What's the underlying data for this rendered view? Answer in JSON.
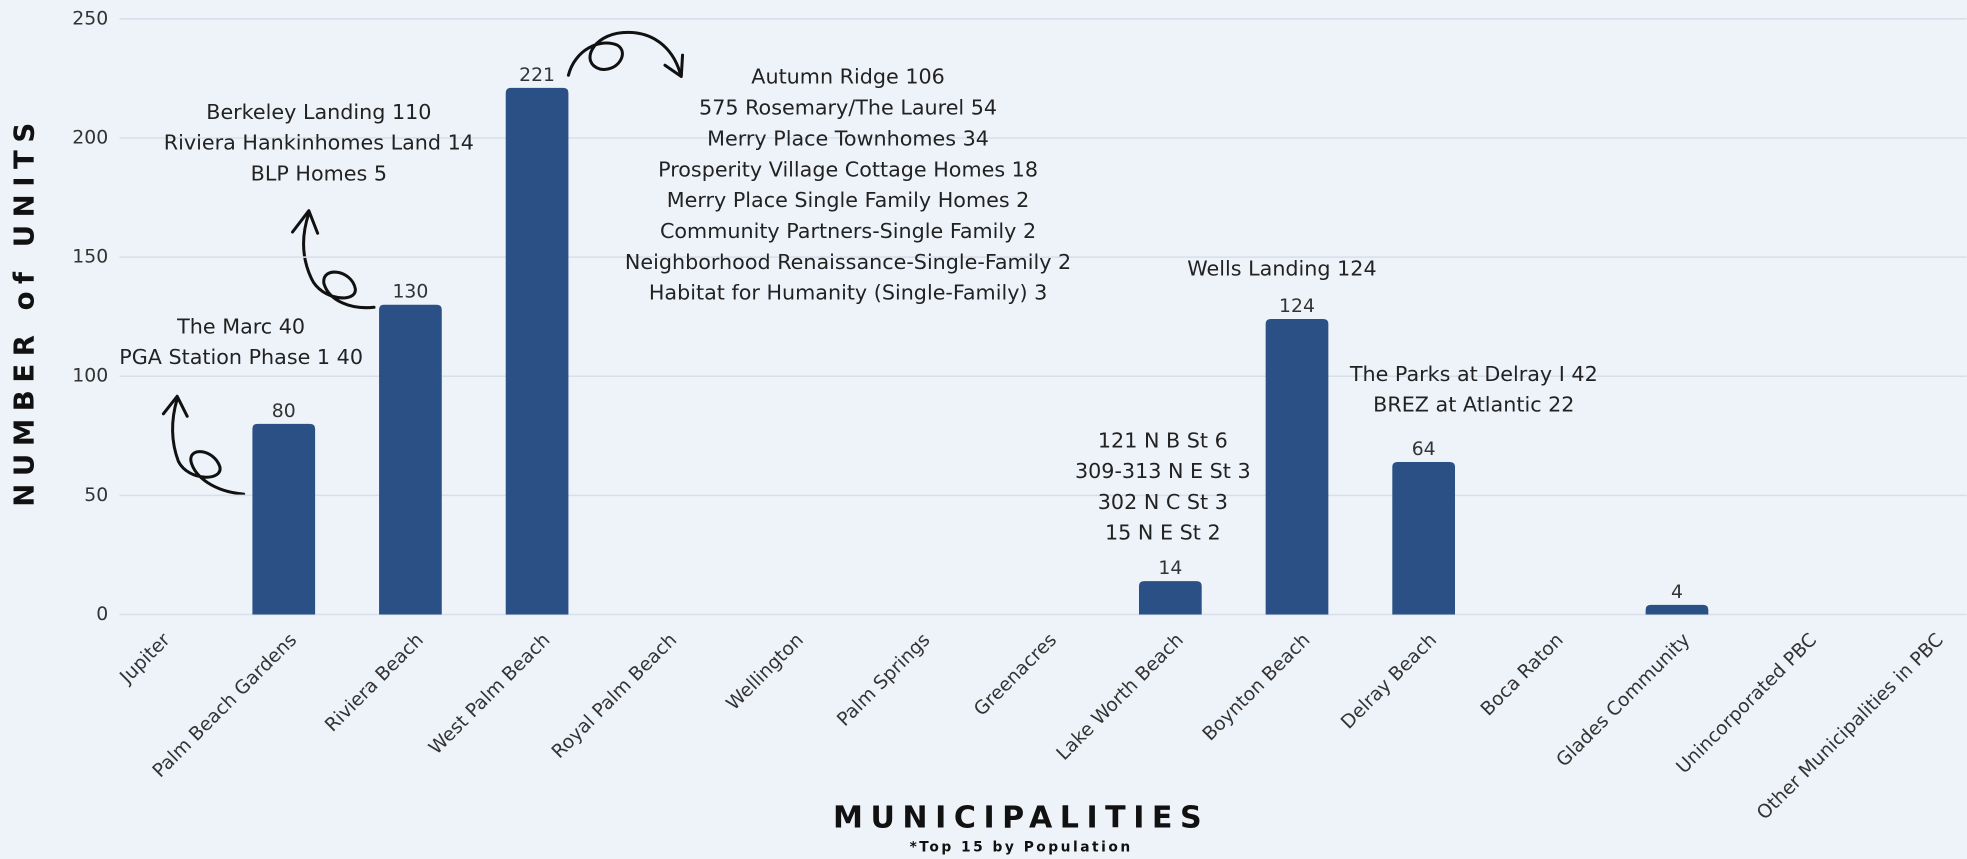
{
  "chart_data": {
    "type": "bar",
    "categories": [
      "Jupiter",
      "Palm Beach Gardens",
      "Riviera Beach",
      "West Palm Beach",
      "Royal Palm Beach",
      "Wellington",
      "Palm Springs",
      "Greenacres",
      "Lake Worth Beach",
      "Boynton Beach",
      "Delray Beach",
      "Boca Raton",
      "Glades Community",
      "Unincorporated PBC",
      "Other Municipalities in PBC"
    ],
    "values": [
      0,
      80,
      130,
      221,
      0,
      0,
      0,
      0,
      14,
      124,
      64,
      0,
      4,
      0,
      0
    ],
    "color": "#2b5085",
    "ylim": [
      0,
      250
    ],
    "yticks": [
      0,
      50,
      100,
      150,
      200,
      250
    ],
    "grid": true,
    "y_label": "NUMBER of UNITS",
    "x_label": "MUNICIPALITIES",
    "note": "*Top 15 by Population",
    "annotations": [
      {
        "lines": [
          "The Marc 40",
          "PGA Station Phase 1 40"
        ]
      },
      {
        "lines": [
          "Berkeley Landing 110",
          "Riviera Hankinhomes Land 14",
          "BLP Homes 5"
        ]
      },
      {
        "lines": [
          "Autumn Ridge 106",
          "575 Rosemary/The Laurel 54",
          "Merry Place Townhomes 34",
          "Prosperity Village Cottage Homes 18",
          "Merry Place Single Family Homes 2",
          "Community Partners-Single Family 2",
          "Neighborhood Renaissance-Single-Family 2",
          "Habitat for Humanity (Single-Family) 3"
        ]
      },
      {
        "lines": [
          "Wells Landing 124"
        ]
      },
      {
        "lines": [
          "The Parks at Delray I 42",
          "BREZ at Atlantic 22"
        ]
      },
      {
        "lines": [
          "121 N B St 6",
          "309-313 N E St 3",
          "302 N C St 3",
          "15 N E St 2"
        ]
      }
    ]
  }
}
